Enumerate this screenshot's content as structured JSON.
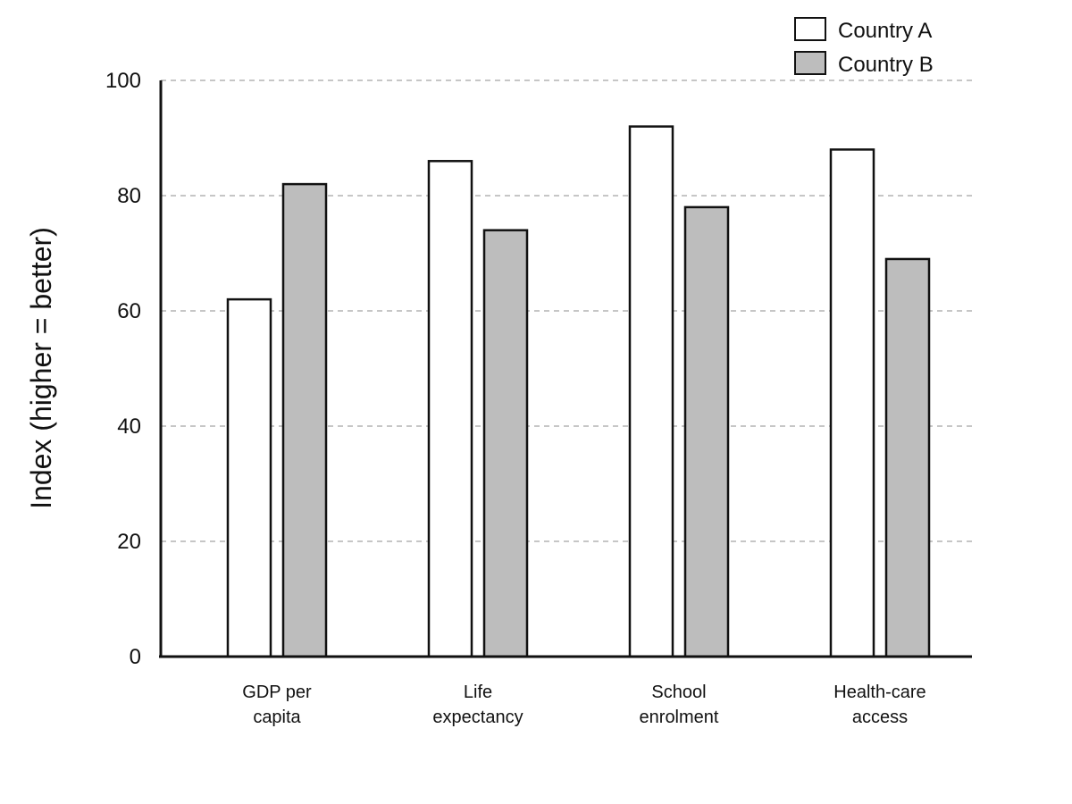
{
  "chart_data": {
    "type": "bar",
    "categories": [
      "GDP per capita",
      "Life expectancy",
      "School enrolment",
      "Health-care access"
    ],
    "category_lines": [
      [
        "GDP per",
        "capita"
      ],
      [
        "Life",
        "expectancy"
      ],
      [
        "School",
        "enrolment"
      ],
      [
        "Health-care",
        "access"
      ]
    ],
    "series": [
      {
        "name": "Country A",
        "values": [
          62,
          86,
          92,
          88
        ],
        "color": "#ffffff"
      },
      {
        "name": "Country B",
        "values": [
          82,
          74,
          78,
          69
        ],
        "color": "#bdbdbd"
      }
    ],
    "ylabel": "Index (higher = better)",
    "ylim": [
      0,
      100
    ],
    "yticks": [
      0,
      20,
      40,
      60,
      80,
      100
    ],
    "grid": true,
    "legend_position": "top-right"
  }
}
